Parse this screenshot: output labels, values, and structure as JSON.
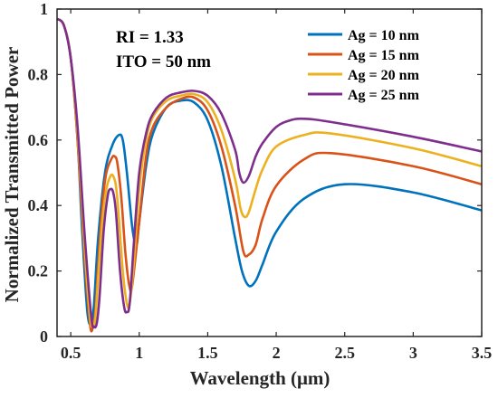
{
  "chart_data": {
    "type": "line",
    "title": "",
    "xlabel": "Wavelength (μm)",
    "ylabel": "Normalized Transmitted Power",
    "xlim": [
      0.4,
      3.5
    ],
    "ylim": [
      0,
      1
    ],
    "xticks": [
      0.5,
      1,
      1.5,
      2,
      2.5,
      3,
      3.5
    ],
    "xtick_labels": [
      "0.5",
      "1",
      "1.5",
      "2",
      "2.5",
      "3",
      "3.5"
    ],
    "yticks": [
      0,
      0.2,
      0.4,
      0.6,
      0.8,
      1
    ],
    "ytick_labels": [
      "0",
      "0.2",
      "0.4",
      "0.6",
      "0.8",
      "1"
    ],
    "grid": false,
    "legend_position": "top-right",
    "annotations": [
      "RI = 1.33",
      "ITO = 50 nm"
    ],
    "series": [
      {
        "name": "Ag = 10 nm",
        "color": "#0072BD",
        "x": [
          0.4,
          0.45,
          0.5,
          0.55,
          0.58,
          0.62,
          0.65,
          0.67,
          0.7,
          0.75,
          0.8,
          0.85,
          0.88,
          0.91,
          0.95,
          0.98,
          1.0,
          1.05,
          1.1,
          1.2,
          1.3,
          1.4,
          1.5,
          1.6,
          1.7,
          1.75,
          1.8,
          1.85,
          1.9,
          2.0,
          2.2,
          2.5,
          3.0,
          3.5
        ],
        "y": [
          0.97,
          0.95,
          0.85,
          0.6,
          0.35,
          0.08,
          0.04,
          0.1,
          0.3,
          0.5,
          0.58,
          0.615,
          0.6,
          0.5,
          0.33,
          0.28,
          0.35,
          0.52,
          0.62,
          0.7,
          0.72,
          0.715,
          0.66,
          0.52,
          0.3,
          0.2,
          0.155,
          0.17,
          0.22,
          0.32,
          0.42,
          0.465,
          0.44,
          0.385
        ]
      },
      {
        "name": "Ag = 15 nm",
        "color": "#D95319",
        "x": [
          0.4,
          0.45,
          0.5,
          0.55,
          0.6,
          0.64,
          0.66,
          0.68,
          0.7,
          0.73,
          0.76,
          0.8,
          0.82,
          0.84,
          0.87,
          0.9,
          0.93,
          0.95,
          1.0,
          1.05,
          1.1,
          1.2,
          1.3,
          1.4,
          1.5,
          1.6,
          1.7,
          1.76,
          1.8,
          1.85,
          1.9,
          2.0,
          2.2,
          2.4,
          3.0,
          3.5
        ],
        "y": [
          0.97,
          0.95,
          0.85,
          0.6,
          0.25,
          0.04,
          0.025,
          0.08,
          0.22,
          0.4,
          0.5,
          0.545,
          0.55,
          0.53,
          0.42,
          0.25,
          0.15,
          0.16,
          0.35,
          0.55,
          0.64,
          0.7,
          0.725,
          0.73,
          0.69,
          0.58,
          0.4,
          0.26,
          0.25,
          0.28,
          0.36,
          0.46,
          0.54,
          0.56,
          0.52,
          0.465
        ]
      },
      {
        "name": "Ag = 20 nm",
        "color": "#EDB120",
        "x": [
          0.4,
          0.45,
          0.5,
          0.55,
          0.6,
          0.64,
          0.66,
          0.68,
          0.7,
          0.73,
          0.76,
          0.79,
          0.81,
          0.83,
          0.85,
          0.88,
          0.91,
          0.93,
          0.96,
          1.0,
          1.05,
          1.1,
          1.2,
          1.3,
          1.4,
          1.5,
          1.6,
          1.7,
          1.74,
          1.77,
          1.8,
          1.85,
          1.9,
          2.0,
          2.2,
          2.4,
          3.0,
          3.5
        ],
        "y": [
          0.97,
          0.95,
          0.85,
          0.62,
          0.28,
          0.06,
          0.03,
          0.06,
          0.18,
          0.35,
          0.45,
          0.49,
          0.49,
          0.46,
          0.37,
          0.2,
          0.1,
          0.1,
          0.22,
          0.45,
          0.6,
          0.67,
          0.72,
          0.735,
          0.74,
          0.715,
          0.63,
          0.48,
          0.39,
          0.365,
          0.38,
          0.45,
          0.51,
          0.58,
          0.615,
          0.62,
          0.575,
          0.52
        ]
      },
      {
        "name": "Ag = 25 nm",
        "color": "#7E2F8E",
        "x": [
          0.4,
          0.45,
          0.5,
          0.55,
          0.6,
          0.65,
          0.67,
          0.69,
          0.71,
          0.74,
          0.77,
          0.79,
          0.81,
          0.83,
          0.86,
          0.89,
          0.91,
          0.93,
          0.96,
          1.0,
          1.05,
          1.1,
          1.2,
          1.3,
          1.4,
          1.5,
          1.6,
          1.7,
          1.73,
          1.76,
          1.8,
          1.85,
          1.9,
          2.0,
          2.1,
          2.2,
          2.4,
          3.0,
          3.5
        ],
        "y": [
          0.97,
          0.95,
          0.85,
          0.64,
          0.32,
          0.06,
          0.03,
          0.04,
          0.12,
          0.32,
          0.43,
          0.45,
          0.44,
          0.38,
          0.2,
          0.09,
          0.075,
          0.1,
          0.28,
          0.5,
          0.62,
          0.68,
          0.73,
          0.745,
          0.75,
          0.735,
          0.68,
          0.57,
          0.5,
          0.47,
          0.49,
          0.55,
          0.59,
          0.64,
          0.66,
          0.665,
          0.655,
          0.61,
          0.565
        ]
      }
    ]
  }
}
